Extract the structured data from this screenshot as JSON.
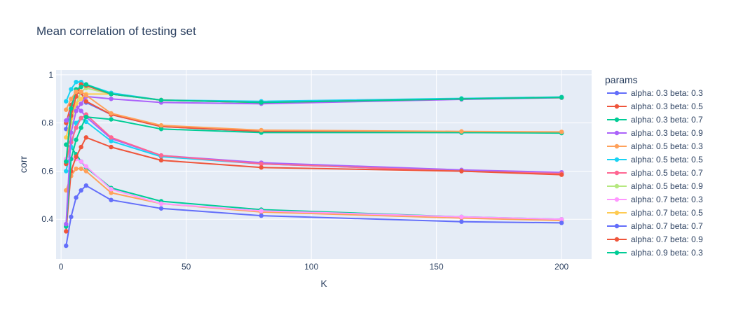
{
  "chart_data": {
    "type": "line",
    "title": "Mean correlation of testing set",
    "xlabel": "K",
    "ylabel": "corr",
    "xlim": [
      -2,
      212
    ],
    "ylim": [
      0.235,
      1.02
    ],
    "x_ticks": [
      0,
      50,
      100,
      150,
      200
    ],
    "y_ticks": [
      0.4,
      0.6,
      0.8,
      1
    ],
    "y_tick_labels": [
      "0.4",
      "0.6",
      "0.8",
      "1"
    ],
    "grid": true,
    "legend_title": "params",
    "legend_position": "right",
    "x": [
      2,
      4,
      6,
      8,
      10,
      20,
      40,
      80,
      160,
      200
    ],
    "series": [
      {
        "name": "alpha: 0.3 beta: 0.3",
        "color": "#636efa",
        "values": [
          0.775,
          0.86,
          0.93,
          0.925,
          0.885,
          0.835,
          0.785,
          0.765,
          0.76,
          0.76
        ]
      },
      {
        "name": "alpha: 0.3 beta: 0.5",
        "color": "#ef553b",
        "values": [
          0.8,
          0.875,
          0.925,
          0.925,
          0.89,
          0.835,
          0.785,
          0.765,
          0.762,
          0.762
        ]
      },
      {
        "name": "alpha: 0.3 beta: 0.7",
        "color": "#00cc96",
        "values": [
          0.71,
          0.7,
          0.67,
          0.64,
          0.615,
          0.53,
          0.475,
          0.44,
          0.41,
          0.4
        ]
      },
      {
        "name": "alpha: 0.3 beta: 0.9",
        "color": "#ab63fa",
        "values": [
          0.81,
          0.84,
          0.87,
          0.85,
          0.825,
          0.735,
          0.665,
          0.635,
          0.605,
          0.595
        ]
      },
      {
        "name": "alpha: 0.5 beta: 0.3",
        "color": "#ffa15a",
        "values": [
          0.52,
          0.58,
          0.61,
          0.61,
          0.6,
          0.51,
          0.465,
          0.43,
          0.405,
          0.395
        ]
      },
      {
        "name": "alpha: 0.5 beta: 0.5",
        "color": "#19d3f3",
        "values": [
          0.6,
          0.7,
          0.8,
          0.82,
          0.805,
          0.725,
          0.66,
          0.63,
          0.6,
          0.59
        ]
      },
      {
        "name": "alpha: 0.5 beta: 0.7",
        "color": "#ff6692",
        "values": [
          0.64,
          0.72,
          0.78,
          0.82,
          0.835,
          0.74,
          0.665,
          0.63,
          0.6,
          0.59
        ]
      },
      {
        "name": "alpha: 0.5 beta: 0.9",
        "color": "#b6e880",
        "values": [
          0.65,
          0.8,
          0.88,
          0.93,
          0.945,
          0.92,
          0.895,
          0.885,
          0.9,
          0.905
        ]
      },
      {
        "name": "alpha: 0.7 beta: 0.3",
        "color": "#ff97ff",
        "values": [
          0.65,
          0.655,
          0.65,
          0.64,
          0.62,
          0.525,
          0.465,
          0.435,
          0.41,
          0.4
        ]
      },
      {
        "name": "alpha: 0.7 beta: 0.5",
        "color": "#fecb52",
        "values": [
          0.74,
          0.82,
          0.88,
          0.9,
          0.92,
          0.92,
          0.895,
          0.885,
          0.9,
          0.905
        ]
      },
      {
        "name": "alpha: 0.7 beta: 0.7",
        "color": "#636efa",
        "values": [
          0.29,
          0.41,
          0.49,
          0.52,
          0.54,
          0.48,
          0.445,
          0.415,
          0.39,
          0.385
        ]
      },
      {
        "name": "alpha: 0.7 beta: 0.9",
        "color": "#ef553b",
        "values": [
          0.35,
          0.6,
          0.66,
          0.7,
          0.74,
          0.7,
          0.645,
          0.615,
          0.6,
          0.585
        ]
      },
      {
        "name": "alpha: 0.9 beta: 0.3",
        "color": "#00cc96",
        "values": [
          0.37,
          0.65,
          0.73,
          0.78,
          0.825,
          0.815,
          0.775,
          0.76,
          0.76,
          0.758
        ]
      },
      {
        "name": "",
        "color": "#ab63fa",
        "values": [
          0.38,
          0.76,
          0.85,
          0.88,
          0.91,
          0.9,
          0.885,
          0.88,
          0.898,
          0.905
        ]
      },
      {
        "name": "",
        "color": "#19d3f3",
        "values": [
          0.89,
          0.94,
          0.97,
          0.97,
          0.96,
          0.925,
          0.895,
          0.89,
          0.902,
          0.908
        ]
      },
      {
        "name": "",
        "color": "#ef553b",
        "values": [
          0.63,
          0.83,
          0.91,
          0.96,
          0.955,
          0.92,
          0.895,
          0.885,
          0.9,
          0.906
        ]
      },
      {
        "name": "",
        "color": "#00cc96",
        "values": [
          0.64,
          0.86,
          0.94,
          0.95,
          0.96,
          0.92,
          0.895,
          0.885,
          0.9,
          0.906
        ]
      },
      {
        "name": "",
        "color": "#ffa15a",
        "values": [
          0.855,
          0.9,
          0.93,
          0.93,
          0.915,
          0.84,
          0.79,
          0.77,
          0.765,
          0.763
        ]
      }
    ]
  }
}
